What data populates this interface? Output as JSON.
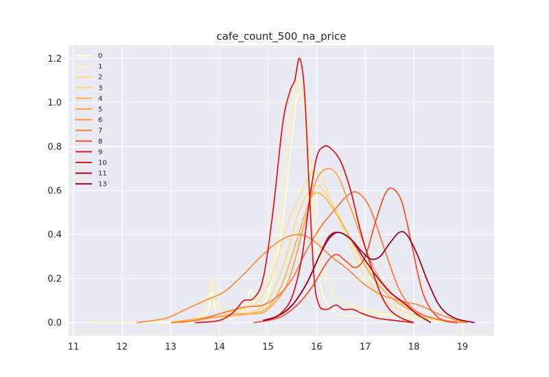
{
  "chart_data": {
    "type": "line",
    "title": "cafe_count_500_na_price",
    "xlabel": "",
    "ylabel": "",
    "xlim": [
      10.9,
      19.65
    ],
    "ylim": [
      -0.06,
      1.26
    ],
    "xticks": [
      11,
      12,
      13,
      14,
      15,
      16,
      17,
      18,
      19
    ],
    "yticks": [
      0.0,
      0.2,
      0.4,
      0.6,
      0.8,
      1.0,
      1.2
    ],
    "grid": true,
    "legend_position": "upper-left",
    "series": [
      {
        "name": "0",
        "color": "#ffffcc",
        "points": [
          [
            11.25,
            0.0
          ],
          [
            12.0,
            0.0
          ],
          [
            12.8,
            0.003
          ],
          [
            13.4,
            0.01
          ],
          [
            13.75,
            0.05
          ],
          [
            13.85,
            0.14
          ],
          [
            13.95,
            0.04
          ],
          [
            14.2,
            0.015
          ],
          [
            14.5,
            0.06
          ],
          [
            14.65,
            0.15
          ],
          [
            14.8,
            0.05
          ],
          [
            15.1,
            0.2
          ],
          [
            15.35,
            0.55
          ],
          [
            15.55,
            0.95
          ],
          [
            15.65,
            1.05
          ],
          [
            15.75,
            0.95
          ],
          [
            15.9,
            0.55
          ],
          [
            16.05,
            0.2
          ],
          [
            16.3,
            0.06
          ],
          [
            16.7,
            0.03
          ],
          [
            17.2,
            0.04
          ],
          [
            17.6,
            0.03
          ],
          [
            18.0,
            0.02
          ],
          [
            18.6,
            0.005
          ],
          [
            19.0,
            0.0
          ]
        ]
      },
      {
        "name": "1",
        "color": "#fff2ae",
        "points": [
          [
            13.0,
            0.0
          ],
          [
            13.5,
            0.02
          ],
          [
            13.75,
            0.08
          ],
          [
            13.85,
            0.2
          ],
          [
            13.95,
            0.08
          ],
          [
            14.3,
            0.05
          ],
          [
            14.55,
            0.08
          ],
          [
            14.7,
            0.1
          ],
          [
            15.0,
            0.18
          ],
          [
            15.25,
            0.5
          ],
          [
            15.45,
            0.9
          ],
          [
            15.6,
            1.1
          ],
          [
            15.7,
            1.05
          ],
          [
            15.85,
            0.8
          ],
          [
            16.0,
            0.45
          ],
          [
            16.2,
            0.2
          ],
          [
            16.5,
            0.1
          ],
          [
            17.0,
            0.06
          ],
          [
            17.5,
            0.04
          ],
          [
            18.0,
            0.02
          ],
          [
            18.5,
            0.01
          ],
          [
            19.0,
            0.0
          ]
        ]
      },
      {
        "name": "2",
        "color": "#fee391",
        "points": [
          [
            13.0,
            0.0
          ],
          [
            13.5,
            0.01
          ],
          [
            14.0,
            0.04
          ],
          [
            14.5,
            0.06
          ],
          [
            14.8,
            0.1
          ],
          [
            15.1,
            0.22
          ],
          [
            15.4,
            0.45
          ],
          [
            15.7,
            0.6
          ],
          [
            15.9,
            0.68
          ],
          [
            16.1,
            0.66
          ],
          [
            16.3,
            0.55
          ],
          [
            16.6,
            0.4
          ],
          [
            16.9,
            0.25
          ],
          [
            17.3,
            0.12
          ],
          [
            17.8,
            0.05
          ],
          [
            18.3,
            0.02
          ],
          [
            18.9,
            0.0
          ]
        ]
      },
      {
        "name": "3",
        "color": "#fed976",
        "points": [
          [
            13.2,
            0.0
          ],
          [
            13.8,
            0.02
          ],
          [
            14.3,
            0.04
          ],
          [
            14.7,
            0.05
          ],
          [
            15.0,
            0.1
          ],
          [
            15.3,
            0.25
          ],
          [
            15.6,
            0.48
          ],
          [
            15.85,
            0.6
          ],
          [
            16.05,
            0.62
          ],
          [
            16.3,
            0.55
          ],
          [
            16.6,
            0.42
          ],
          [
            16.9,
            0.3
          ],
          [
            17.2,
            0.2
          ],
          [
            17.5,
            0.12
          ],
          [
            17.9,
            0.06
          ],
          [
            18.4,
            0.02
          ],
          [
            19.0,
            0.0
          ]
        ]
      },
      {
        "name": "4",
        "color": "#feb24c",
        "points": [
          [
            13.0,
            0.0
          ],
          [
            13.6,
            0.02
          ],
          [
            14.2,
            0.03
          ],
          [
            14.6,
            0.04
          ],
          [
            15.0,
            0.07
          ],
          [
            15.3,
            0.18
          ],
          [
            15.6,
            0.38
          ],
          [
            15.85,
            0.55
          ],
          [
            16.0,
            0.59
          ],
          [
            16.2,
            0.56
          ],
          [
            16.5,
            0.46
          ],
          [
            16.8,
            0.34
          ],
          [
            17.1,
            0.22
          ],
          [
            17.5,
            0.12
          ],
          [
            17.9,
            0.06
          ],
          [
            18.4,
            0.02
          ],
          [
            19.0,
            0.0
          ]
        ]
      },
      {
        "name": "5",
        "color": "#fea347",
        "points": [
          [
            13.2,
            0.0
          ],
          [
            13.8,
            0.02
          ],
          [
            14.3,
            0.04
          ],
          [
            14.7,
            0.04
          ],
          [
            15.0,
            0.06
          ],
          [
            15.4,
            0.18
          ],
          [
            15.75,
            0.45
          ],
          [
            16.0,
            0.65
          ],
          [
            16.25,
            0.7
          ],
          [
            16.45,
            0.66
          ],
          [
            16.7,
            0.52
          ],
          [
            17.0,
            0.34
          ],
          [
            17.3,
            0.2
          ],
          [
            17.7,
            0.1
          ],
          [
            18.1,
            0.04
          ],
          [
            18.6,
            0.01
          ],
          [
            19.1,
            0.0
          ]
        ]
      },
      {
        "name": "6",
        "color": "#fd8d3c",
        "points": [
          [
            12.3,
            0.0
          ],
          [
            12.9,
            0.02
          ],
          [
            13.3,
            0.06
          ],
          [
            13.7,
            0.1
          ],
          [
            14.1,
            0.14
          ],
          [
            14.5,
            0.22
          ],
          [
            14.9,
            0.31
          ],
          [
            15.3,
            0.38
          ],
          [
            15.65,
            0.4
          ],
          [
            15.95,
            0.37
          ],
          [
            16.3,
            0.3
          ],
          [
            16.6,
            0.25
          ],
          [
            16.95,
            0.18
          ],
          [
            17.3,
            0.13
          ],
          [
            17.7,
            0.1
          ],
          [
            18.1,
            0.08
          ],
          [
            18.5,
            0.04
          ],
          [
            18.9,
            0.01
          ],
          [
            19.1,
            0.0
          ]
        ]
      },
      {
        "name": "7",
        "color": "#fc7a38",
        "points": [
          [
            13.0,
            0.0
          ],
          [
            13.5,
            0.01
          ],
          [
            14.0,
            0.04
          ],
          [
            14.5,
            0.07
          ],
          [
            14.9,
            0.08
          ],
          [
            15.2,
            0.12
          ],
          [
            15.5,
            0.2
          ],
          [
            15.8,
            0.33
          ],
          [
            16.1,
            0.44
          ],
          [
            16.4,
            0.52
          ],
          [
            16.65,
            0.58
          ],
          [
            16.85,
            0.59
          ],
          [
            17.1,
            0.52
          ],
          [
            17.4,
            0.33
          ],
          [
            17.7,
            0.15
          ],
          [
            18.0,
            0.06
          ],
          [
            18.4,
            0.02
          ],
          [
            18.9,
            0.0
          ]
        ]
      },
      {
        "name": "8",
        "color": "#fc4e2a",
        "points": [
          [
            14.7,
            0.0
          ],
          [
            15.0,
            0.01
          ],
          [
            15.3,
            0.03
          ],
          [
            15.6,
            0.08
          ],
          [
            15.9,
            0.16
          ],
          [
            16.2,
            0.27
          ],
          [
            16.4,
            0.31
          ],
          [
            16.6,
            0.28
          ],
          [
            16.8,
            0.25
          ],
          [
            17.0,
            0.3
          ],
          [
            17.2,
            0.45
          ],
          [
            17.4,
            0.58
          ],
          [
            17.55,
            0.61
          ],
          [
            17.75,
            0.55
          ],
          [
            17.95,
            0.36
          ],
          [
            18.15,
            0.16
          ],
          [
            18.35,
            0.06
          ],
          [
            18.6,
            0.01
          ],
          [
            18.9,
            0.0
          ]
        ]
      },
      {
        "name": "9",
        "color": "#e31a1c",
        "points": [
          [
            13.5,
            0.0
          ],
          [
            14.0,
            0.01
          ],
          [
            14.3,
            0.05
          ],
          [
            14.5,
            0.1
          ],
          [
            14.7,
            0.11
          ],
          [
            14.9,
            0.2
          ],
          [
            15.1,
            0.5
          ],
          [
            15.3,
            0.9
          ],
          [
            15.45,
            1.05
          ],
          [
            15.55,
            1.1
          ],
          [
            15.65,
            1.2
          ],
          [
            15.75,
            1.05
          ],
          [
            15.85,
            0.6
          ],
          [
            15.95,
            0.2
          ],
          [
            16.05,
            0.08
          ],
          [
            16.2,
            0.06
          ],
          [
            16.4,
            0.08
          ],
          [
            16.55,
            0.06
          ],
          [
            16.75,
            0.06
          ],
          [
            16.95,
            0.04
          ],
          [
            17.25,
            0.02
          ],
          [
            17.6,
            0.01
          ],
          [
            18.0,
            0.0
          ]
        ]
      },
      {
        "name": "10",
        "color": "#d7191c",
        "points": [
          [
            14.9,
            0.01
          ],
          [
            15.1,
            0.02
          ],
          [
            15.3,
            0.05
          ],
          [
            15.5,
            0.12
          ],
          [
            15.7,
            0.3
          ],
          [
            15.85,
            0.55
          ],
          [
            16.0,
            0.75
          ],
          [
            16.15,
            0.8
          ],
          [
            16.3,
            0.79
          ],
          [
            16.5,
            0.73
          ],
          [
            16.7,
            0.6
          ],
          [
            16.9,
            0.42
          ],
          [
            17.1,
            0.27
          ],
          [
            17.3,
            0.14
          ],
          [
            17.5,
            0.06
          ],
          [
            17.75,
            0.02
          ],
          [
            18.0,
            0.0
          ]
        ]
      },
      {
        "name": "11",
        "color": "#bd0026",
        "points": [
          [
            14.9,
            0.01
          ],
          [
            15.2,
            0.03
          ],
          [
            15.5,
            0.08
          ],
          [
            15.8,
            0.18
          ],
          [
            16.05,
            0.3
          ],
          [
            16.25,
            0.39
          ],
          [
            16.45,
            0.41
          ],
          [
            16.7,
            0.38
          ],
          [
            16.95,
            0.3
          ],
          [
            17.2,
            0.22
          ],
          [
            17.5,
            0.14
          ],
          [
            17.8,
            0.09
          ],
          [
            18.05,
            0.04
          ],
          [
            18.2,
            0.02
          ],
          [
            18.35,
            0.0
          ]
        ]
      },
      {
        "name": "13",
        "color": "#9e0027",
        "points": [
          [
            14.9,
            0.01
          ],
          [
            15.2,
            0.03
          ],
          [
            15.5,
            0.08
          ],
          [
            15.8,
            0.18
          ],
          [
            16.05,
            0.3
          ],
          [
            16.25,
            0.38
          ],
          [
            16.45,
            0.41
          ],
          [
            16.7,
            0.38
          ],
          [
            16.9,
            0.33
          ],
          [
            17.1,
            0.29
          ],
          [
            17.3,
            0.3
          ],
          [
            17.5,
            0.36
          ],
          [
            17.7,
            0.41
          ],
          [
            17.85,
            0.4
          ],
          [
            18.05,
            0.32
          ],
          [
            18.3,
            0.18
          ],
          [
            18.55,
            0.07
          ],
          [
            18.85,
            0.02
          ],
          [
            19.25,
            0.0
          ]
        ]
      }
    ]
  }
}
